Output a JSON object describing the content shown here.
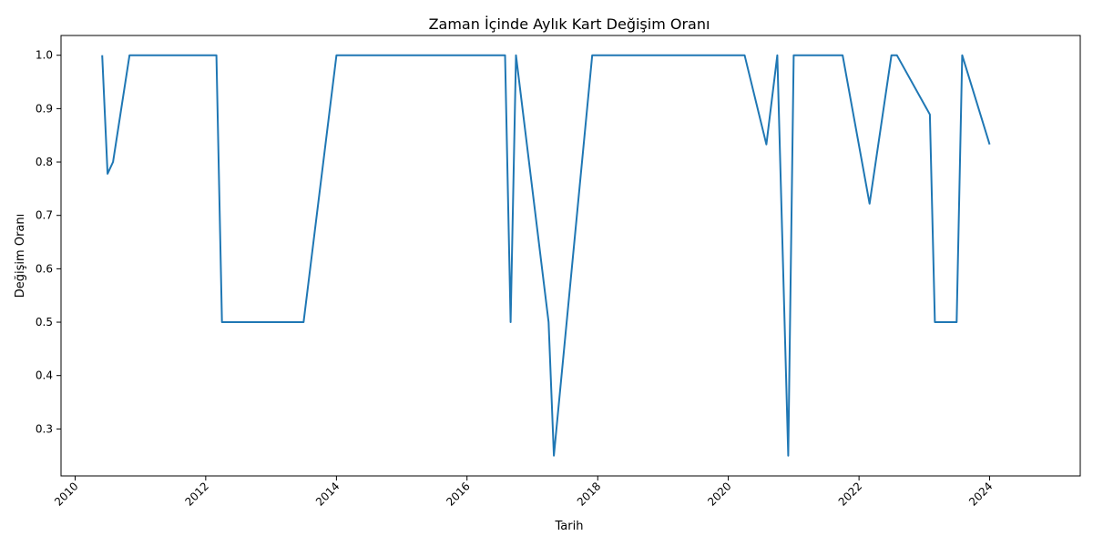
{
  "chart_data": {
    "type": "line",
    "title": "Zaman İçinde Aylık Kart Değişim Oranı",
    "xlabel": "Tarih",
    "ylabel": "Değişim Oranı",
    "x_ticks": [
      "2010",
      "2012",
      "2014",
      "2016",
      "2018",
      "2020",
      "2022",
      "2024"
    ],
    "y_ticks": [
      "0.3",
      "0.4",
      "0.5",
      "0.6",
      "0.7",
      "0.8",
      "0.9",
      "1.0"
    ],
    "xlim": [
      "2009-10-14",
      "2025-05-22"
    ],
    "ylim": [
      0.212,
      1.037
    ],
    "grid": false,
    "color": "#1f77b4",
    "series": [
      {
        "x": [
          "2010-06-01",
          "2010-07-01",
          "2010-08-01",
          "2010-11-01",
          "2012-03-01",
          "2012-04-01",
          "2013-07-01",
          "2014-01-01",
          "2016-08-01",
          "2016-09-01",
          "2016-10-01",
          "2017-04-01",
          "2017-05-01",
          "2017-12-01",
          "2020-04-01",
          "2020-08-01",
          "2020-10-01",
          "2020-12-01",
          "2021-01-01",
          "2021-10-01",
          "2022-03-01",
          "2022-07-01",
          "2022-08-01",
          "2023-02-01",
          "2023-03-01",
          "2023-07-01",
          "2023-08-01",
          "2024-01-01"
        ],
        "y": [
          1.0,
          0.778,
          0.8,
          1.0,
          1.0,
          0.5,
          0.5,
          1.0,
          1.0,
          0.5,
          1.0,
          0.5,
          0.25,
          1.0,
          1.0,
          0.833,
          1.0,
          0.25,
          1.0,
          1.0,
          0.722,
          1.0,
          1.0,
          0.889,
          0.5,
          0.5,
          1.0,
          0.833
        ]
      }
    ]
  }
}
